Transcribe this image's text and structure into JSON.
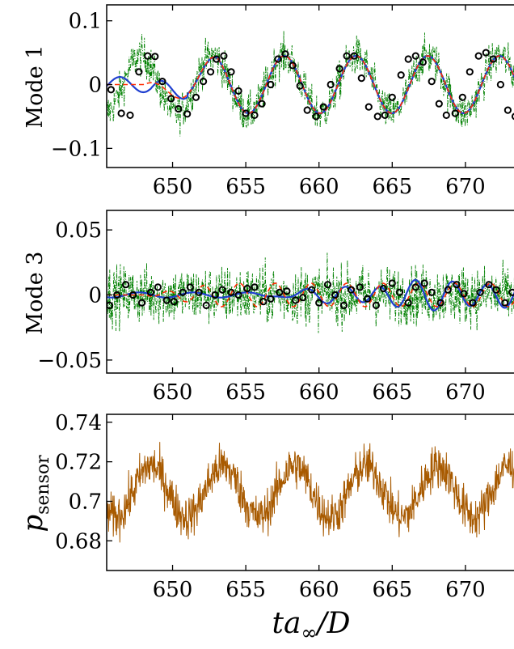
{
  "chart_data": [
    {
      "type": "line",
      "ylabel": "Mode 1",
      "xlim": [
        645.5,
        674.2
      ],
      "ylim": [
        -0.13,
        0.125
      ],
      "xticks": [
        650,
        655,
        660,
        665,
        670
      ],
      "xtick_labels": [
        "650",
        "655",
        "660",
        "665",
        "670"
      ],
      "yticks": [
        0.1,
        0,
        -0.1
      ],
      "ytick_labels": [
        "0.1",
        "0",
        "−0.1"
      ],
      "grid": false,
      "series": [
        {
          "kind": "noisy-measurement",
          "color": "#008000",
          "style": "dash-dot",
          "baseline_amp": 0.045,
          "period": 4.9,
          "noise": 0.03
        },
        {
          "kind": "reconstruction",
          "color": "#1f3fd0",
          "style": "solid",
          "amp": 0.045,
          "period": 4.9
        },
        {
          "kind": "reference",
          "color": "#ff2a00",
          "style": "dashed"
        },
        {
          "kind": "samples",
          "marker": "open-circle",
          "color": "#000000",
          "x": [
            645.8,
            646.5,
            647.1,
            647.7,
            648.3,
            648.8,
            649.3,
            649.9,
            650.4,
            651.0,
            651.6,
            652.1,
            652.6,
            653.0,
            653.5,
            654.0,
            654.5,
            655.0,
            655.6,
            656.1,
            656.7,
            657.2,
            657.7,
            658.2,
            658.7,
            659.2,
            659.8,
            660.3,
            660.8,
            661.4,
            661.9,
            662.4,
            662.9,
            663.4,
            664.0,
            664.5,
            665.0,
            665.6,
            666.1,
            666.6,
            667.1,
            667.7,
            668.2,
            668.7,
            669.3,
            669.8,
            670.3,
            670.9,
            671.4,
            671.9,
            672.4,
            672.9,
            673.4,
            674.0
          ],
          "y": [
            -0.008,
            -0.045,
            -0.048,
            0.02,
            0.045,
            0.044,
            0.005,
            -0.022,
            -0.038,
            -0.046,
            -0.02,
            0.005,
            0.02,
            0.04,
            0.045,
            0.02,
            -0.01,
            -0.045,
            -0.048,
            -0.03,
            0.0,
            0.04,
            0.048,
            0.03,
            -0.002,
            -0.04,
            -0.05,
            -0.035,
            0.0,
            0.025,
            0.045,
            0.045,
            0.01,
            -0.035,
            -0.05,
            -0.048,
            -0.02,
            0.015,
            0.04,
            0.045,
            0.035,
            0.005,
            -0.03,
            -0.048,
            -0.045,
            -0.02,
            0.02,
            0.045,
            0.05,
            0.04,
            0.0,
            -0.04,
            -0.05,
            -0.02
          ]
        }
      ]
    },
    {
      "type": "line",
      "ylabel": "Mode 3",
      "xlim": [
        645.5,
        674.2
      ],
      "ylim": [
        -0.06,
        0.065
      ],
      "xticks": [
        650,
        655,
        660,
        665,
        670
      ],
      "xtick_labels": [
        "650",
        "655",
        "660",
        "665",
        "670"
      ],
      "yticks": [
        0.05,
        0,
        -0.05
      ],
      "ytick_labels": [
        "0.05",
        "0",
        "−0.05"
      ],
      "grid": false,
      "series": [
        {
          "kind": "noisy-measurement",
          "color": "#008000",
          "style": "dash-dot",
          "noise": 0.022
        },
        {
          "kind": "reconstruction",
          "color": "#1f3fd0",
          "style": "solid",
          "amp": 0.01,
          "period": 2.45
        },
        {
          "kind": "reference",
          "color": "#ff2a00",
          "style": "dashed"
        },
        {
          "kind": "samples",
          "marker": "open-circle",
          "color": "#000000",
          "x": [
            645.7,
            646.2,
            646.8,
            647.3,
            647.9,
            648.5,
            649.0,
            649.6,
            650.1,
            650.7,
            651.2,
            651.8,
            652.3,
            652.9,
            653.4,
            654.0,
            654.5,
            655.1,
            655.6,
            656.2,
            656.7,
            657.3,
            657.8,
            658.4,
            658.9,
            659.5,
            660.0,
            660.6,
            661.1,
            661.7,
            662.2,
            662.8,
            663.3,
            663.9,
            664.4,
            665.0,
            665.5,
            666.1,
            666.6,
            667.2,
            667.7,
            668.3,
            668.8,
            669.4,
            669.9,
            670.5,
            671.0,
            671.6,
            672.1,
            672.7,
            673.2,
            673.8
          ],
          "y": [
            -0.008,
            0.0,
            0.008,
            0.0,
            -0.006,
            0.002,
            0.006,
            -0.004,
            -0.005,
            0.002,
            0.006,
            0.002,
            -0.008,
            0.0,
            0.004,
            0.002,
            0.0,
            0.005,
            0.006,
            -0.005,
            -0.003,
            0.002,
            0.003,
            -0.004,
            -0.002,
            0.004,
            -0.006,
            0.008,
            0.0,
            -0.008,
            0.004,
            0.006,
            -0.003,
            -0.008,
            0.005,
            0.009,
            0.002,
            -0.006,
            0.006,
            0.009,
            0.002,
            -0.006,
            0.004,
            0.008,
            0.001,
            -0.006,
            0.002,
            0.008,
            0.004,
            -0.006,
            0.002,
            -0.009
          ]
        }
      ]
    },
    {
      "type": "line",
      "ylabel": "p_sensor",
      "xlim": [
        645.5,
        674.2
      ],
      "ylim": [
        0.665,
        0.744
      ],
      "xticks": [
        650,
        655,
        660,
        665,
        670
      ],
      "xtick_labels": [
        "650",
        "655",
        "660",
        "665",
        "670"
      ],
      "yticks": [
        0.74,
        0.72,
        0.7,
        0.68
      ],
      "ytick_labels": [
        "0.74",
        "0.72",
        "0.7",
        "0.68"
      ],
      "grid": false,
      "series": [
        {
          "kind": "pressure-signal",
          "color": "#a85a00",
          "style": "solid",
          "mean": 0.705,
          "amp": 0.013,
          "period": 4.9,
          "noise": 0.011
        }
      ]
    }
  ],
  "labels": {
    "mode1": "Mode 1",
    "mode3": "Mode 3",
    "psensor_main": "p",
    "psensor_sub": "sensor",
    "xlabel_t": "ta",
    "xlabel_sub": "∞",
    "xlabel_rest": "/D"
  }
}
